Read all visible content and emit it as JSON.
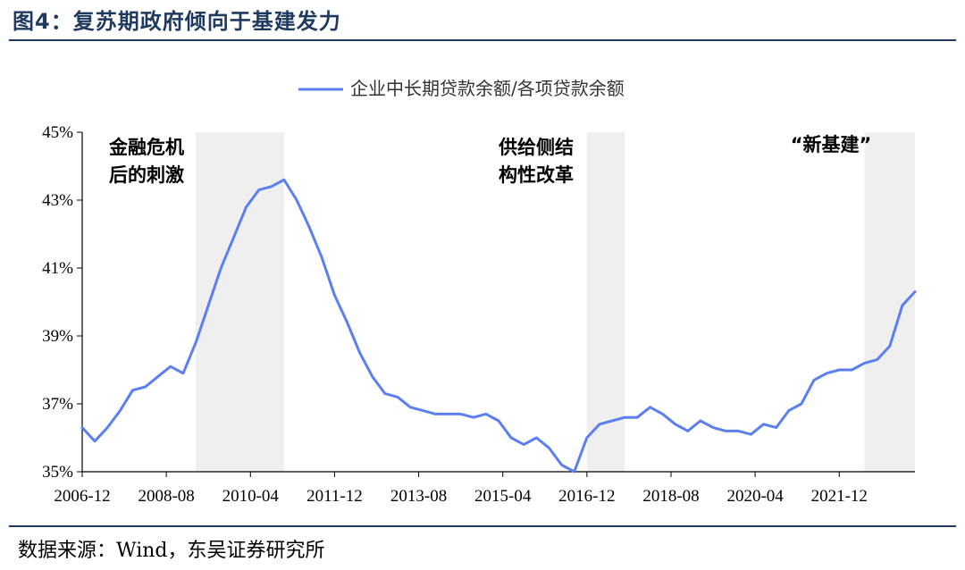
{
  "header": {
    "title": "图4：复苏期政府倾向于基建发力"
  },
  "footer": {
    "source": "数据来源：Wind，东吴证券研究所"
  },
  "chart_data": {
    "type": "line",
    "title": "",
    "xlabel": "",
    "ylabel": "",
    "ylim": [
      35,
      45
    ],
    "y_ticks": [
      "35%",
      "37%",
      "39%",
      "41%",
      "43%",
      "45%"
    ],
    "x_tick_labels": [
      "2006-12",
      "2008-08",
      "2010-04",
      "2011-12",
      "2013-08",
      "2015-04",
      "2016-12",
      "2018-08",
      "2020-04",
      "2021-12"
    ],
    "legend": {
      "position": "top-center"
    },
    "line_color": "#5b7ff0",
    "shade_color": "#efefef",
    "series": [
      {
        "name": "企业中长期贷款余额/各项贷款余额",
        "x": [
          "2006-12",
          "2007-03",
          "2007-06",
          "2007-09",
          "2007-12",
          "2008-03",
          "2008-06",
          "2008-09",
          "2008-12",
          "2009-03",
          "2009-06",
          "2009-09",
          "2009-12",
          "2010-03",
          "2010-06",
          "2010-09",
          "2010-12",
          "2011-03",
          "2011-06",
          "2011-09",
          "2011-12",
          "2012-03",
          "2012-06",
          "2012-09",
          "2012-12",
          "2013-03",
          "2013-06",
          "2013-09",
          "2013-12",
          "2014-03",
          "2014-06",
          "2014-09",
          "2014-12",
          "2015-03",
          "2015-06",
          "2015-09",
          "2015-12",
          "2016-03",
          "2016-06",
          "2016-09",
          "2016-12",
          "2017-03",
          "2017-06",
          "2017-09",
          "2017-12",
          "2018-03",
          "2018-06",
          "2018-09",
          "2018-12",
          "2019-03",
          "2019-06",
          "2019-09",
          "2019-12",
          "2020-03",
          "2020-06",
          "2020-09",
          "2020-12",
          "2021-03",
          "2021-06",
          "2021-09",
          "2021-12",
          "2022-03",
          "2022-06",
          "2022-09",
          "2022-12",
          "2023-03",
          "2023-06"
        ],
        "values": [
          36.3,
          35.9,
          36.3,
          36.8,
          37.4,
          37.5,
          37.8,
          38.1,
          37.9,
          38.8,
          39.9,
          41.0,
          41.9,
          42.8,
          43.3,
          43.4,
          43.6,
          43.0,
          42.2,
          41.3,
          40.2,
          39.4,
          38.5,
          37.8,
          37.3,
          37.2,
          36.9,
          36.8,
          36.7,
          36.7,
          36.7,
          36.6,
          36.7,
          36.5,
          36.0,
          35.8,
          36.0,
          35.7,
          35.2,
          35.0,
          36.0,
          36.4,
          36.5,
          36.6,
          36.6,
          36.9,
          36.7,
          36.4,
          36.2,
          36.5,
          36.3,
          36.2,
          36.2,
          36.1,
          36.4,
          36.3,
          36.8,
          37.0,
          37.7,
          37.9,
          38.0,
          38.0,
          38.2,
          38.3,
          38.7,
          39.9,
          40.3
        ]
      }
    ],
    "shaded_periods": [
      {
        "start": "2009-03",
        "end": "2010-12",
        "label_lines": [
          "金融危机",
          "后的刺激"
        ]
      },
      {
        "start": "2016-12",
        "end": "2017-09",
        "label_lines": [
          "供给侧结",
          "构性改革"
        ]
      },
      {
        "start": "2022-06",
        "end": "2023-06",
        "label_lines": [
          "“新基建”"
        ]
      }
    ]
  }
}
